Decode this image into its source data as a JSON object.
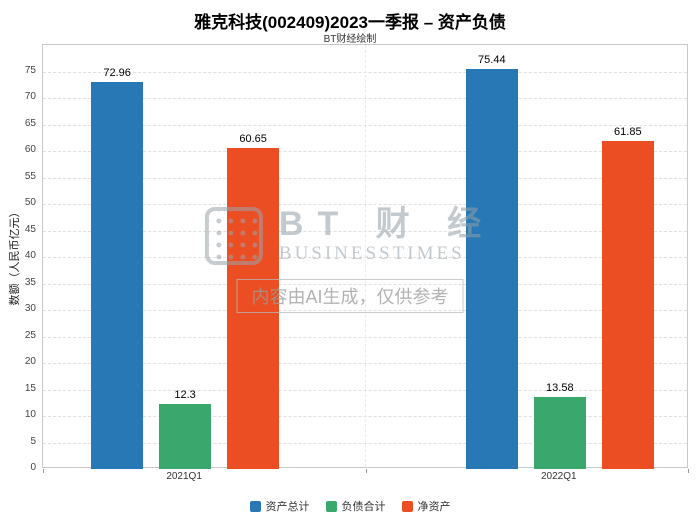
{
  "title": "雅克科技(002409)2023一季报 – 资产负债",
  "subtitle": "BT财经绘制",
  "watermark": {
    "brand_cn": "BT 财 经",
    "brand_en": "BUSINESSTIMES",
    "notice": "内容由AI生成，仅供参考"
  },
  "chart_data": {
    "type": "bar",
    "categories": [
      "2021Q1",
      "2022Q1"
    ],
    "series": [
      {
        "name": "资产总计",
        "color": "#2878b5",
        "values": [
          72.96,
          75.44
        ]
      },
      {
        "name": "负债合计",
        "color": "#3aa76d",
        "values": [
          12.3,
          13.58
        ]
      },
      {
        "name": "净资产",
        "color": "#ec4e23",
        "values": [
          60.65,
          61.85
        ]
      }
    ],
    "title": "雅克科技(002409)2023一季报 – 资产负债",
    "xlabel": "",
    "ylabel": "数额（人民币亿元）",
    "ylim": [
      0,
      80
    ],
    "ytick_step": 5,
    "ytick_max": 75,
    "grid": true,
    "legend_position": "bottom"
  }
}
